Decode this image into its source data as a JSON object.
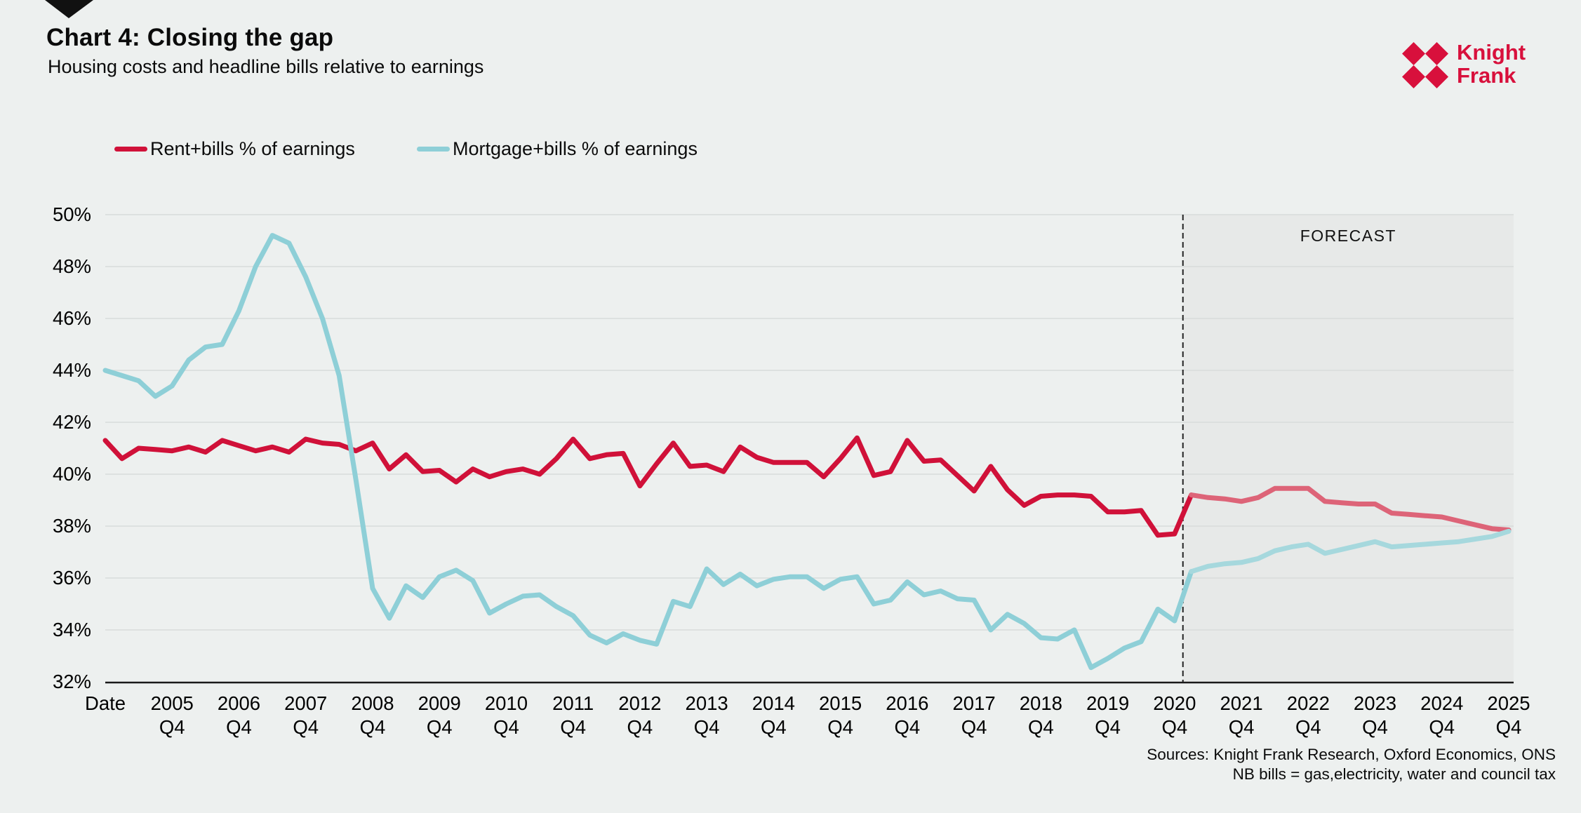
{
  "header": {
    "title": "Chart 4: Closing the gap",
    "subtitle": "Housing costs and headline bills relative to earnings"
  },
  "logo": {
    "name": "Knight Frank",
    "line1": "Knight",
    "line2": "Frank",
    "color": "#d8103c"
  },
  "legend": {
    "items": [
      {
        "label": "Rent+bills % of earnings",
        "color": "#d01139"
      },
      {
        "label": "Mortgage+bills % of earnings",
        "color": "#8ecfd7"
      }
    ]
  },
  "chart_data": {
    "type": "line",
    "title": "Chart 4: Closing the gap",
    "subtitle": "Housing costs and headline bills relative to earnings",
    "xlabel": "",
    "ylabel": "",
    "ylim": [
      32,
      50
    ],
    "yticks": [
      50,
      48,
      46,
      44,
      42,
      40,
      38,
      36,
      34,
      32
    ],
    "ytick_suffix": "%",
    "grid": "horizontal",
    "gridline_color": "#d8dcdb",
    "axis_color": "#1a1a1a",
    "background_color": "#edf0ef",
    "n_points": 85,
    "x_start_label": "Date",
    "x_tick_interval": 4,
    "x_tick_labels": [
      {
        "year": "Date",
        "q": ""
      },
      {
        "year": "2005",
        "q": "Q4"
      },
      {
        "year": "2006",
        "q": "Q4"
      },
      {
        "year": "2007",
        "q": "Q4"
      },
      {
        "year": "2008",
        "q": "Q4"
      },
      {
        "year": "2009",
        "q": "Q4"
      },
      {
        "year": "2010",
        "q": "Q4"
      },
      {
        "year": "2011",
        "q": "Q4"
      },
      {
        "year": "2012",
        "q": "Q4"
      },
      {
        "year": "2013",
        "q": "Q4"
      },
      {
        "year": "2014",
        "q": "Q4"
      },
      {
        "year": "2015",
        "q": "Q4"
      },
      {
        "year": "2016",
        "q": "Q4"
      },
      {
        "year": "2017",
        "q": "Q4"
      },
      {
        "year": "2018",
        "q": "Q4"
      },
      {
        "year": "2019",
        "q": "Q4"
      },
      {
        "year": "2020",
        "q": "Q4"
      },
      {
        "year": "2021",
        "q": "Q4"
      },
      {
        "year": "2022",
        "q": "Q4"
      },
      {
        "year": "2023",
        "q": "Q4"
      },
      {
        "year": "2024",
        "q": "Q4"
      },
      {
        "year": "2025",
        "q": "Q4"
      }
    ],
    "forecast": {
      "label": "FORECAST",
      "start_index": 65,
      "fill": "#e7e9e8",
      "divider_color": "#222222"
    },
    "series": [
      {
        "name": "Rent+bills % of earnings",
        "color": "#d01139",
        "forecast_color": "#dd6478",
        "values": [
          41.3,
          40.6,
          41.0,
          40.95,
          40.9,
          41.05,
          40.85,
          41.3,
          41.1,
          40.9,
          41.05,
          40.85,
          41.35,
          41.2,
          41.15,
          40.9,
          41.2,
          40.2,
          40.75,
          40.1,
          40.15,
          39.7,
          40.2,
          39.9,
          40.1,
          40.2,
          40.0,
          40.6,
          41.35,
          40.6,
          40.75,
          40.8,
          39.55,
          40.4,
          41.2,
          40.3,
          40.35,
          40.1,
          41.05,
          40.65,
          40.45,
          40.45,
          40.45,
          39.9,
          40.6,
          41.4,
          39.95,
          40.1,
          41.3,
          40.5,
          40.55,
          39.95,
          39.35,
          40.3,
          39.4,
          38.8,
          39.15,
          39.2,
          39.2,
          39.15,
          38.55,
          38.55,
          38.6,
          37.65,
          37.7,
          39.2,
          39.1,
          39.05,
          38.95,
          39.1,
          39.45,
          39.45,
          39.45,
          38.95,
          38.9,
          38.85,
          38.85,
          38.5,
          38.45,
          38.4,
          38.35,
          38.2,
          38.05,
          37.9,
          37.85
        ]
      },
      {
        "name": "Mortgage+bills % of earnings",
        "color": "#8ecfd7",
        "forecast_color": "#a6d8dd",
        "values": [
          44.0,
          43.8,
          43.6,
          43.0,
          43.4,
          44.4,
          44.9,
          45.0,
          46.3,
          48.0,
          49.2,
          48.9,
          47.6,
          46.0,
          43.8,
          39.8,
          35.6,
          34.45,
          35.7,
          35.25,
          36.05,
          36.3,
          35.9,
          34.65,
          35.0,
          35.3,
          35.35,
          34.9,
          34.55,
          33.8,
          33.5,
          33.85,
          33.6,
          33.45,
          35.1,
          34.9,
          36.35,
          35.75,
          36.15,
          35.7,
          35.95,
          36.05,
          36.05,
          35.6,
          35.95,
          36.05,
          35.0,
          35.15,
          35.85,
          35.35,
          35.5,
          35.2,
          35.15,
          34.0,
          34.6,
          34.25,
          33.7,
          33.65,
          34.0,
          32.55,
          32.9,
          33.3,
          33.55,
          34.8,
          34.35,
          36.25,
          36.45,
          36.55,
          36.6,
          36.75,
          37.05,
          37.2,
          37.3,
          36.95,
          37.1,
          37.25,
          37.4,
          37.2,
          37.25,
          37.3,
          37.35,
          37.4,
          37.5,
          37.6,
          37.8
        ]
      }
    ]
  },
  "footer": {
    "line1": "Sources: Knight Frank Research, Oxford Economics, ONS",
    "line2": "NB bills = gas,electricity, water and council tax"
  }
}
